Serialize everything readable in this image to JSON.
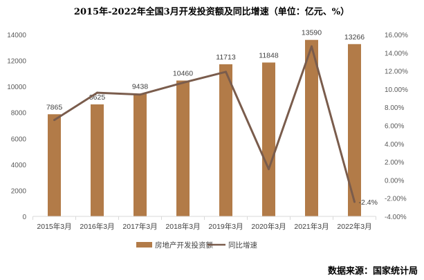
{
  "chart_data": {
    "type": "bar+line",
    "title": "2015年-2022年全国3月开发投资额及同比增速（单位：亿元、%）",
    "categories": [
      "2015年3月",
      "2016年3月",
      "2017年3月",
      "2018年3月",
      "2019年3月",
      "2020年3月",
      "2021年3月",
      "2022年3月"
    ],
    "series": [
      {
        "name": "房地产开发投资额",
        "type": "bar",
        "axis": "left",
        "color": "#B27B48",
        "values": [
          7865,
          8625,
          9438,
          10460,
          11713,
          11848,
          13590,
          13266
        ],
        "data_labels": [
          "7865",
          "8625",
          "9438",
          "10460",
          "11713",
          "11848",
          "13590",
          "13266"
        ]
      },
      {
        "name": "同比增速",
        "type": "line",
        "axis": "right",
        "color": "#7A5C4C",
        "values": [
          6.6,
          9.6,
          9.4,
          10.7,
          11.9,
          1.2,
          14.7,
          -2.4
        ],
        "data_labels": [
          "",
          "",
          "",
          "",
          "",
          "",
          "",
          "-2.4%"
        ]
      }
    ],
    "left_axis": {
      "ylim": [
        0,
        14000
      ],
      "ticks": [
        "0",
        "2000",
        "4000",
        "6000",
        "8000",
        "10000",
        "12000",
        "14000"
      ]
    },
    "right_axis": {
      "ylim": [
        -4,
        16
      ],
      "ticks": [
        "-4.00%",
        "-2.00%",
        "0.00%",
        "2.00%",
        "4.00%",
        "6.00%",
        "8.00%",
        "10.00%",
        "12.00%",
        "14.00%",
        "16.00%"
      ]
    },
    "grid": false,
    "legend": "bottom"
  },
  "source": "数据来源：国家统计局"
}
